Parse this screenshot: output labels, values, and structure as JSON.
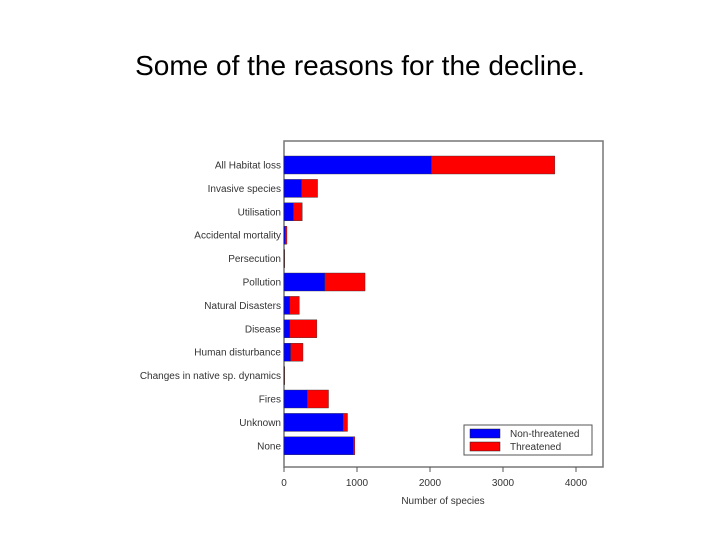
{
  "slide": {
    "title": "Some of the reasons for the decline."
  },
  "chart_data": {
    "type": "bar",
    "orientation": "horizontal",
    "stacked": true,
    "categories": [
      "All Habitat loss",
      "Invasive species",
      "Utilisation",
      "Accidental mortality",
      "Persecution",
      "Pollution",
      "Natural Disasters",
      "Disease",
      "Human disturbance",
      "Changes in native sp. dynamics",
      "Fires",
      "Unknown",
      "None"
    ],
    "series": [
      {
        "name": "Non-threatened",
        "color": "#0000ff",
        "values": [
          2020,
          240,
          130,
          20,
          5,
          560,
          80,
          80,
          90,
          5,
          320,
          810,
          950
        ]
      },
      {
        "name": "Threatened",
        "color": "#ff0000",
        "values": [
          1690,
          220,
          120,
          20,
          5,
          550,
          130,
          370,
          170,
          5,
          290,
          60,
          20
        ]
      }
    ],
    "xlabel": "Number of species",
    "xlim": [
      0,
      4000
    ],
    "xticks": [
      "0",
      "1000",
      "2000",
      "3000",
      "4000"
    ],
    "legend": "bottom-right",
    "grid": false
  }
}
